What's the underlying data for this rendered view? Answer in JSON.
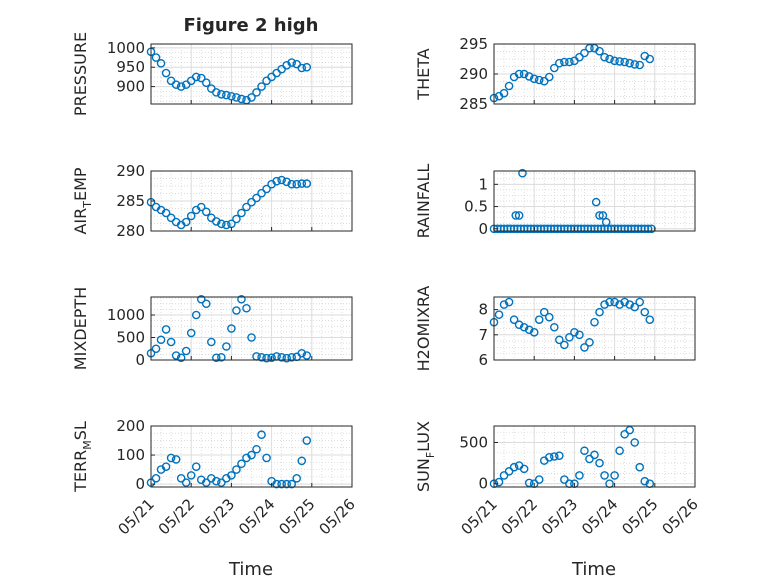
{
  "figure": {
    "title": "Figure 2 high",
    "xlabel": "Time",
    "date_ticks": [
      "05/21",
      "05/22",
      "05/23",
      "05/24",
      "05/25",
      "05/26"
    ],
    "marker_color": "#0072BD"
  },
  "chart_data": [
    {
      "type": "scatter",
      "ylabel": "PRESSURE",
      "title": "Figure 2 high",
      "xlim": [
        "05/21",
        "05/26"
      ],
      "ylim": [
        855,
        1010
      ],
      "yticks": [
        "900",
        "950",
        "1000"
      ],
      "ytick_values": [
        900,
        950,
        1000
      ],
      "grid": "on",
      "x": [
        "05/21 00:00",
        "05/21 03:00",
        "05/21 06:00",
        "05/21 09:00",
        "05/21 12:00",
        "05/21 15:00",
        "05/21 18:00",
        "05/21 21:00",
        "05/22 00:00",
        "05/22 03:00",
        "05/22 06:00",
        "05/22 09:00",
        "05/22 12:00",
        "05/22 15:00",
        "05/22 18:00",
        "05/22 21:00",
        "05/23 00:00",
        "05/23 03:00",
        "05/23 06:00",
        "05/23 09:00",
        "05/23 12:00",
        "05/23 15:00",
        "05/23 18:00",
        "05/23 21:00",
        "05/24 00:00",
        "05/24 03:00",
        "05/24 06:00",
        "05/24 09:00",
        "05/24 12:00",
        "05/24 15:00",
        "05/24 18:00",
        "05/24 21:00"
      ],
      "y": [
        990,
        975,
        960,
        935,
        915,
        905,
        900,
        905,
        915,
        925,
        922,
        910,
        895,
        885,
        880,
        878,
        875,
        872,
        868,
        865,
        872,
        885,
        900,
        915,
        925,
        935,
        945,
        955,
        962,
        958,
        948,
        950
      ]
    },
    {
      "type": "scatter",
      "ylabel": "THETA",
      "xlim": [
        "05/21",
        "05/26"
      ],
      "ylim": [
        285,
        295
      ],
      "yticks": [
        "285",
        "290",
        "295"
      ],
      "ytick_values": [
        285,
        290,
        295
      ],
      "grid": "on",
      "x": [
        "05/21 00:00",
        "05/21 03:00",
        "05/21 06:00",
        "05/21 09:00",
        "05/21 12:00",
        "05/21 15:00",
        "05/21 18:00",
        "05/21 21:00",
        "05/22 00:00",
        "05/22 03:00",
        "05/22 06:00",
        "05/22 09:00",
        "05/22 12:00",
        "05/22 15:00",
        "05/22 18:00",
        "05/22 21:00",
        "05/23 00:00",
        "05/23 03:00",
        "05/23 06:00",
        "05/23 09:00",
        "05/23 12:00",
        "05/23 15:00",
        "05/23 18:00",
        "05/23 21:00",
        "05/24 00:00",
        "05/24 03:00",
        "05/24 06:00",
        "05/24 09:00",
        "05/24 12:00",
        "05/24 15:00",
        "05/24 18:00",
        "05/24 21:00"
      ],
      "y": [
        286,
        286.3,
        286.8,
        288,
        289.5,
        290,
        290,
        289.6,
        289.2,
        289,
        288.8,
        289.5,
        291,
        291.8,
        292,
        292,
        292.2,
        292.8,
        293.5,
        294.3,
        294.3,
        293.8,
        292.8,
        292.5,
        292.2,
        292.1,
        292,
        291.8,
        291.6,
        291.5,
        293,
        292.5
      ]
    },
    {
      "type": "scatter",
      "ylabel": "AIR_TEMP",
      "ylabel_main": "AIR",
      "ylabel_sub": "T",
      "ylabel_rest": "EMP",
      "xlim": [
        "05/21",
        "05/26"
      ],
      "ylim": [
        280,
        290
      ],
      "yticks": [
        "280",
        "285",
        "290"
      ],
      "ytick_values": [
        280,
        285,
        290
      ],
      "grid": "on",
      "x": [
        "05/21 00:00",
        "05/21 03:00",
        "05/21 06:00",
        "05/21 09:00",
        "05/21 12:00",
        "05/21 15:00",
        "05/21 18:00",
        "05/21 21:00",
        "05/22 00:00",
        "05/22 03:00",
        "05/22 06:00",
        "05/22 09:00",
        "05/22 12:00",
        "05/22 15:00",
        "05/22 18:00",
        "05/22 21:00",
        "05/23 00:00",
        "05/23 03:00",
        "05/23 06:00",
        "05/23 09:00",
        "05/23 12:00",
        "05/23 15:00",
        "05/23 18:00",
        "05/23 21:00",
        "05/24 00:00",
        "05/24 03:00",
        "05/24 06:00",
        "05/24 09:00",
        "05/24 12:00",
        "05/24 15:00",
        "05/24 18:00",
        "05/24 21:00"
      ],
      "y": [
        284.8,
        284,
        283.5,
        283,
        282.2,
        281.5,
        281,
        281.5,
        282.5,
        283.5,
        284,
        283.2,
        282.2,
        281.6,
        281.2,
        281,
        281.2,
        282,
        283,
        284,
        284.8,
        285.5,
        286.3,
        287,
        287.8,
        288.3,
        288.5,
        288.2,
        287.8,
        287.8,
        287.9,
        287.9
      ]
    },
    {
      "type": "scatter",
      "ylabel": "RAINFALL",
      "xlim": [
        "05/21",
        "05/26"
      ],
      "ylim": [
        -0.05,
        1.3
      ],
      "yticks": [
        "0",
        "0.5",
        "1"
      ],
      "ytick_values": [
        0,
        0.5,
        1
      ],
      "grid": "on",
      "x": [
        "05/21 00:00",
        "05/21 02:00",
        "05/21 04:00",
        "05/21 06:00",
        "05/21 08:00",
        "05/21 10:00",
        "05/21 12:00",
        "05/21 14:00",
        "05/21 16:00",
        "05/21 18:00",
        "05/21 20:00",
        "05/21 22:00",
        "05/22 00:00",
        "05/22 02:00",
        "05/22 04:00",
        "05/22 06:00",
        "05/22 08:00",
        "05/22 10:00",
        "05/22 12:00",
        "05/22 14:00",
        "05/22 16:00",
        "05/22 18:00",
        "05/22 20:00",
        "05/22 22:00",
        "05/23 00:00",
        "05/23 02:00",
        "05/23 04:00",
        "05/23 06:00",
        "05/23 08:00",
        "05/23 10:00",
        "05/23 12:00",
        "05/23 14:00",
        "05/23 16:00",
        "05/23 18:00",
        "05/23 20:00",
        "05/23 22:00",
        "05/24 00:00",
        "05/24 02:00",
        "05/24 04:00",
        "05/24 06:00",
        "05/24 08:00",
        "05/24 10:00",
        "05/24 12:00",
        "05/24 14:00",
        "05/24 16:00",
        "05/24 18:00",
        "05/24 20:00",
        "05/24 22:00",
        "05/21 13:00",
        "05/21 15:00",
        "05/21 17:00",
        "05/23 13:00",
        "05/23 15:00",
        "05/23 17:00",
        "05/23 19:00"
      ],
      "y": [
        0,
        0,
        0,
        0,
        0,
        0,
        0,
        0,
        0,
        0,
        0,
        0,
        0,
        0,
        0,
        0,
        0,
        0,
        0,
        0,
        0,
        0,
        0,
        0,
        0,
        0,
        0,
        0,
        0,
        0,
        0,
        0,
        0,
        0,
        0,
        0,
        0,
        0,
        0,
        0,
        0,
        0,
        0,
        0,
        0,
        0,
        0,
        0,
        0.3,
        0.3,
        1.25,
        0.6,
        0.3,
        0.3,
        0.15
      ]
    },
    {
      "type": "scatter",
      "ylabel": "MIXDEPTH",
      "xlim": [
        "05/21",
        "05/26"
      ],
      "ylim": [
        0,
        1400
      ],
      "yticks": [
        "0",
        "500",
        "1000"
      ],
      "ytick_values": [
        0,
        500,
        1000
      ],
      "grid": "on",
      "x": [
        "05/21 00:00",
        "05/21 03:00",
        "05/21 06:00",
        "05/21 09:00",
        "05/21 12:00",
        "05/21 15:00",
        "05/21 18:00",
        "05/21 21:00",
        "05/22 00:00",
        "05/22 03:00",
        "05/22 06:00",
        "05/22 09:00",
        "05/22 12:00",
        "05/22 15:00",
        "05/22 18:00",
        "05/22 21:00",
        "05/23 00:00",
        "05/23 03:00",
        "05/23 06:00",
        "05/23 09:00",
        "05/23 12:00",
        "05/23 15:00",
        "05/23 18:00",
        "05/23 21:00",
        "05/24 00:00",
        "05/24 03:00",
        "05/24 06:00",
        "05/24 09:00",
        "05/24 12:00",
        "05/24 15:00",
        "05/24 18:00",
        "05/24 21:00"
      ],
      "y": [
        150,
        250,
        450,
        680,
        400,
        100,
        50,
        200,
        600,
        1000,
        1350,
        1250,
        400,
        50,
        60,
        300,
        700,
        1100,
        1350,
        1150,
        500,
        80,
        60,
        40,
        50,
        80,
        60,
        40,
        60,
        70,
        150,
        100
      ]
    },
    {
      "type": "scatter",
      "ylabel": "H2OMIXRA",
      "xlim": [
        "05/21",
        "05/26"
      ],
      "ylim": [
        6,
        8.5
      ],
      "yticks": [
        "6",
        "7",
        "8"
      ],
      "ytick_values": [
        6,
        7,
        8
      ],
      "grid": "on",
      "x": [
        "05/21 00:00",
        "05/21 03:00",
        "05/21 06:00",
        "05/21 09:00",
        "05/21 12:00",
        "05/21 15:00",
        "05/21 18:00",
        "05/21 21:00",
        "05/22 00:00",
        "05/22 03:00",
        "05/22 06:00",
        "05/22 09:00",
        "05/22 12:00",
        "05/22 15:00",
        "05/22 18:00",
        "05/22 21:00",
        "05/23 00:00",
        "05/23 03:00",
        "05/23 06:00",
        "05/23 09:00",
        "05/23 12:00",
        "05/23 15:00",
        "05/23 18:00",
        "05/23 21:00",
        "05/24 00:00",
        "05/24 03:00",
        "05/24 06:00",
        "05/24 09:00",
        "05/24 12:00",
        "05/24 15:00",
        "05/24 18:00",
        "05/24 21:00"
      ],
      "y": [
        7.5,
        7.8,
        8.2,
        8.3,
        7.6,
        7.4,
        7.3,
        7.2,
        7.1,
        7.6,
        7.9,
        7.7,
        7.3,
        6.8,
        6.6,
        6.9,
        7.1,
        7.0,
        6.5,
        6.7,
        7.5,
        7.9,
        8.2,
        8.3,
        8.3,
        8.2,
        8.3,
        8.2,
        8.1,
        8.3,
        7.9,
        7.6
      ]
    },
    {
      "type": "scatter",
      "ylabel": "TERR_MSL",
      "ylabel_main": "TERR",
      "ylabel_sub": "M",
      "ylabel_rest": "SL",
      "xlim": [
        "05/21",
        "05/26"
      ],
      "ylim": [
        -10,
        200
      ],
      "yticks": [
        "0",
        "100",
        "200"
      ],
      "ytick_values": [
        0,
        100,
        200
      ],
      "grid": "on",
      "x": [
        "05/21 00:00",
        "05/21 03:00",
        "05/21 06:00",
        "05/21 09:00",
        "05/21 12:00",
        "05/21 15:00",
        "05/21 18:00",
        "05/21 21:00",
        "05/22 00:00",
        "05/22 03:00",
        "05/22 06:00",
        "05/22 09:00",
        "05/22 12:00",
        "05/22 15:00",
        "05/22 18:00",
        "05/22 21:00",
        "05/23 00:00",
        "05/23 03:00",
        "05/23 06:00",
        "05/23 09:00",
        "05/23 12:00",
        "05/23 15:00",
        "05/23 18:00",
        "05/23 21:00",
        "05/24 00:00",
        "05/24 03:00",
        "05/24 06:00",
        "05/24 09:00",
        "05/24 12:00",
        "05/24 15:00",
        "05/24 18:00",
        "05/24 21:00"
      ],
      "y": [
        5,
        20,
        50,
        60,
        90,
        85,
        20,
        5,
        30,
        60,
        15,
        5,
        20,
        10,
        5,
        20,
        30,
        50,
        70,
        90,
        100,
        120,
        170,
        90,
        10,
        0,
        0,
        0,
        0,
        20,
        80,
        150
      ]
    },
    {
      "type": "scatter",
      "ylabel": "SUN_FLUX",
      "ylabel_main": "SUN",
      "ylabel_sub": "F",
      "ylabel_rest": "LUX",
      "xlim": [
        "05/21",
        "05/26"
      ],
      "ylim": [
        -40,
        700
      ],
      "yticks": [
        "0",
        "500"
      ],
      "ytick_values": [
        0,
        500
      ],
      "grid": "on",
      "x": [
        "05/21 00:00",
        "05/21 03:00",
        "05/21 06:00",
        "05/21 09:00",
        "05/21 12:00",
        "05/21 15:00",
        "05/21 18:00",
        "05/21 21:00",
        "05/22 00:00",
        "05/22 03:00",
        "05/22 06:00",
        "05/22 09:00",
        "05/22 12:00",
        "05/22 15:00",
        "05/22 18:00",
        "05/22 21:00",
        "05/23 00:00",
        "05/23 03:00",
        "05/23 06:00",
        "05/23 09:00",
        "05/23 12:00",
        "05/23 15:00",
        "05/23 18:00",
        "05/23 21:00",
        "05/24 00:00",
        "05/24 03:00",
        "05/24 06:00",
        "05/24 09:00",
        "05/24 12:00",
        "05/24 15:00",
        "05/24 18:00",
        "05/24 21:00"
      ],
      "y": [
        0,
        20,
        100,
        150,
        200,
        220,
        180,
        10,
        0,
        50,
        280,
        320,
        330,
        340,
        50,
        0,
        0,
        100,
        400,
        300,
        350,
        250,
        100,
        0,
        100,
        400,
        600,
        650,
        500,
        200,
        30,
        0
      ]
    }
  ]
}
